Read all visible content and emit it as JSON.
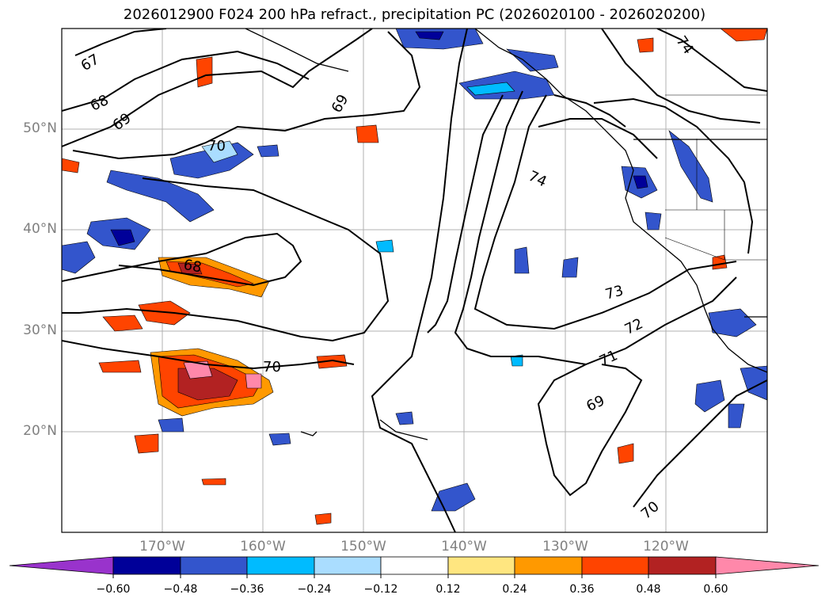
{
  "title": "2026012900 F024 200 hPa refract., precipitation PC (2026020100 - 2026020200)",
  "lat_labels": [
    "50°N",
    "40°N",
    "30°N",
    "20°N"
  ],
  "lon_labels": [
    "170°W",
    "160°W",
    "150°W",
    "140°W",
    "130°W",
    "120°W"
  ],
  "contour_labels": [
    "67",
    "68",
    "69",
    "69",
    "70",
    "74",
    "74",
    "68",
    "73",
    "72",
    "71",
    "70",
    "69",
    "70"
  ],
  "colorbar": {
    "ticks": [
      "−0.60",
      "−0.48",
      "−0.36",
      "−0.24",
      "−0.12",
      "0.12",
      "0.24",
      "0.36",
      "0.48",
      "0.60"
    ],
    "colors": [
      "#9933cc",
      "#000099",
      "#3355cc",
      "#00bbff",
      "#aaddff",
      "#ffffff",
      "#ffe680",
      "#ff9900",
      "#ff4400",
      "#b22222",
      "#ff88aa"
    ]
  }
}
